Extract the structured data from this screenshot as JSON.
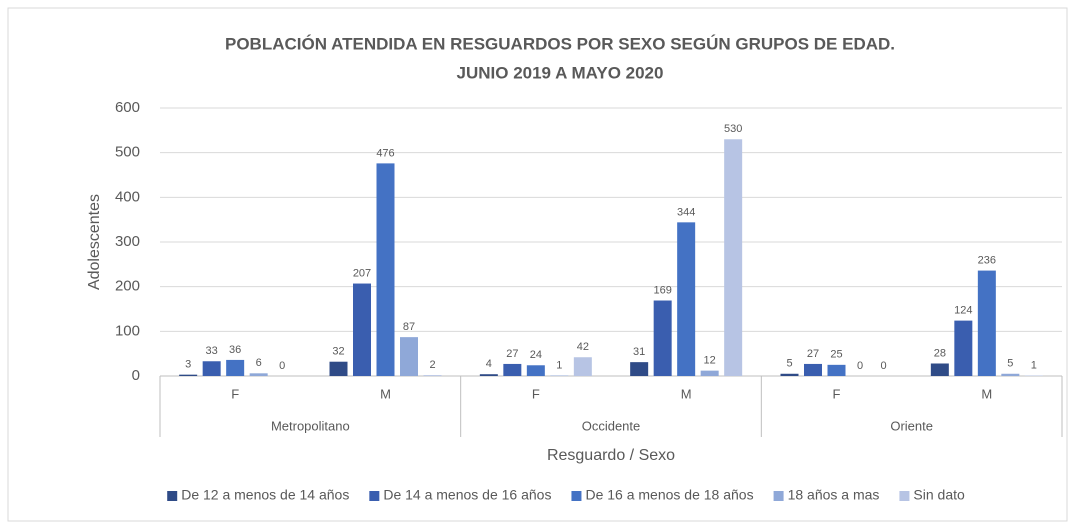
{
  "chart_data": {
    "type": "bar",
    "title": [
      "POBLACIÓN ATENDIDA EN RESGUARDOS POR SEXO SEGÚN GRUPOS DE EDAD.",
      "JUNIO 2019 A MAYO 2020"
    ],
    "xlabel": "Resguardo / Sexo",
    "ylabel": "Adolescentes",
    "categories": [
      "F",
      "M",
      "F",
      "M",
      "F",
      "M"
    ],
    "groups": [
      "Metropolitano",
      "Occidente",
      "Oriente"
    ],
    "series": [
      {
        "name": "De 12 a menos de 14 años",
        "color": "#2f4b87",
        "values": [
          3,
          32,
          4,
          31,
          5,
          28
        ]
      },
      {
        "name": "De 14 a menos de 16 años",
        "color": "#3a5eaf",
        "values": [
          33,
          207,
          27,
          169,
          27,
          124
        ]
      },
      {
        "name": "De 16 a menos de 18 años",
        "color": "#4472c4",
        "values": [
          36,
          476,
          24,
          344,
          25,
          236
        ]
      },
      {
        "name": "18 años a mas",
        "color": "#8fa8d8",
        "values": [
          6,
          87,
          1,
          12,
          0,
          5
        ]
      },
      {
        "name": "Sin dato",
        "color": "#b7c4e4",
        "values": [
          0,
          2,
          42,
          530,
          0,
          1
        ]
      }
    ],
    "ylim": [
      0,
      600
    ],
    "yticks": [
      0,
      100,
      200,
      300,
      400,
      500,
      600
    ],
    "grid": true,
    "legend": "bottom"
  }
}
